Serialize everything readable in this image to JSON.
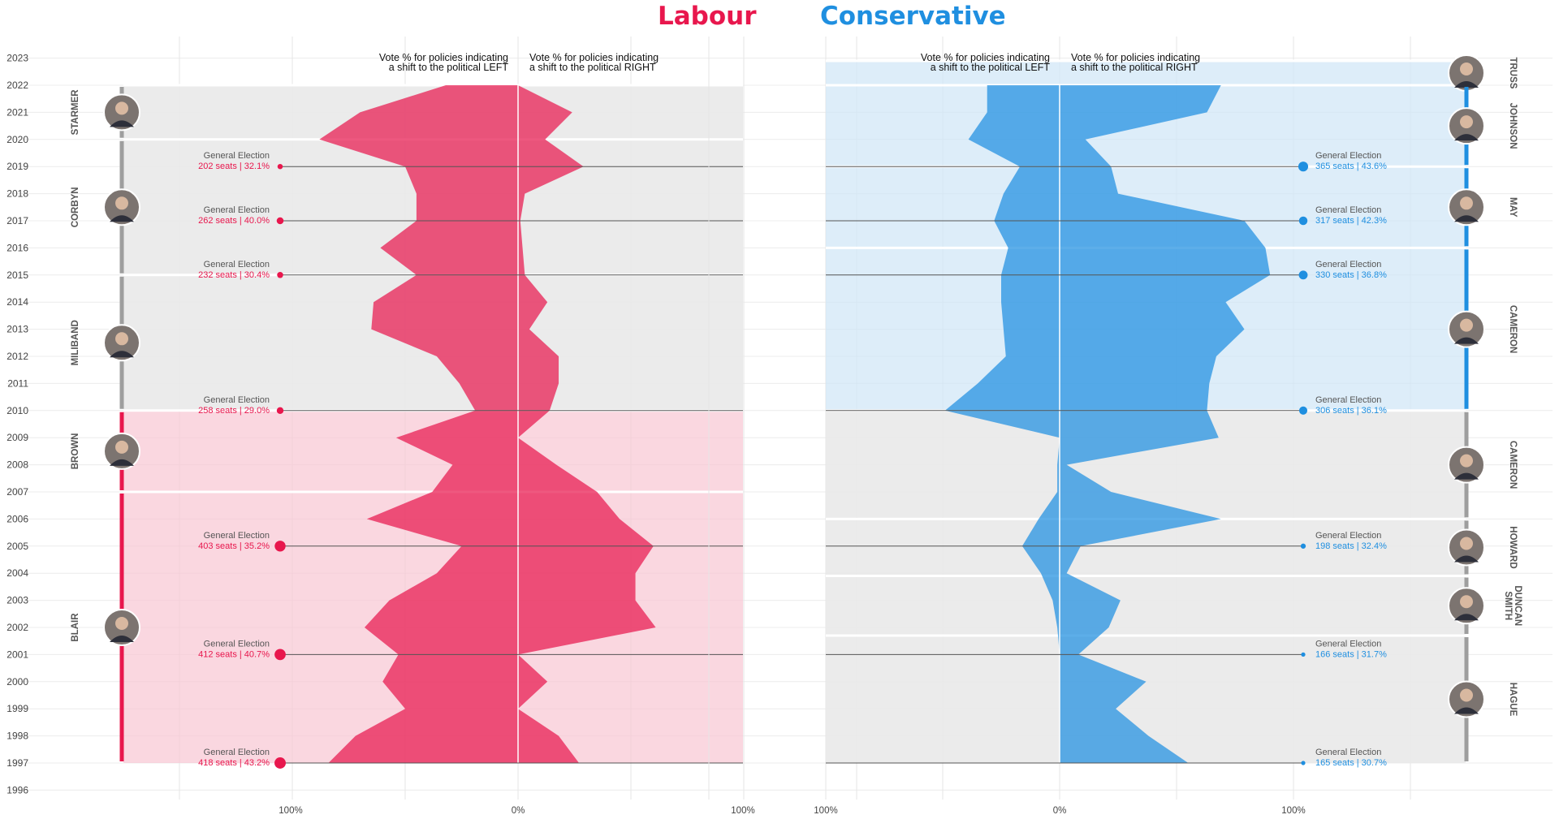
{
  "titles": {
    "labour": "Labour",
    "conservative": "Conservative"
  },
  "colors": {
    "labour": "#e8174d",
    "labour_light": "#f8c6d3",
    "conservative": "#1f8fe0",
    "conservative_light": "#cfe6f7",
    "neutral_band": "#e9e9e9",
    "neutral_line": "#9e9e9e"
  },
  "axis": {
    "years": [
      1996,
      1997,
      1998,
      1999,
      2000,
      2001,
      2002,
      2003,
      2004,
      2005,
      2006,
      2007,
      2008,
      2009,
      2010,
      2011,
      2012,
      2013,
      2014,
      2015,
      2016,
      2017,
      2018,
      2019,
      2020,
      2021,
      2022,
      2023
    ],
    "x_tick_labels": [
      "100%",
      "0%",
      "100%"
    ],
    "left_header": "Vote % for policies indicating\na shift to the political LEFT",
    "right_header": "Vote % for policies indicating\na shift to the political RIGHT"
  },
  "chart_data": [
    {
      "type": "area",
      "title": "Labour",
      "xlabel": "Vote % for policies",
      "xlim": [
        -100,
        100
      ],
      "ylim": [
        1996,
        2023
      ],
      "series": [
        {
          "name": "a shift to the political LEFT",
          "x": [
            1997,
            1998,
            1999,
            2000,
            2001,
            2002,
            2003,
            2004,
            2005,
            2006,
            2007,
            2008,
            2009,
            2010,
            2011,
            2012,
            2013,
            2014,
            2015,
            2016,
            2017,
            2018,
            2019,
            2020,
            2021,
            2022
          ],
          "values": [
            84,
            72,
            50,
            60,
            53,
            68,
            57,
            36,
            25,
            67,
            38,
            29,
            54,
            19,
            26,
            36,
            65,
            64,
            45,
            61,
            45,
            45,
            50,
            88,
            70,
            32
          ]
        },
        {
          "name": "a shift to the political RIGHT",
          "x": [
            1997,
            1998,
            1999,
            2000,
            2001,
            2002,
            2003,
            2004,
            2005,
            2006,
            2007,
            2008,
            2009,
            2010,
            2011,
            2012,
            2013,
            2014,
            2015,
            2016,
            2017,
            2018,
            2019,
            2020,
            2021,
            2022
          ],
          "values": [
            27,
            18,
            0,
            13,
            0,
            61,
            52,
            52,
            60,
            45,
            35,
            17,
            0,
            14,
            18,
            18,
            5,
            13,
            3,
            2,
            1,
            3,
            29,
            12,
            24,
            0
          ]
        }
      ],
      "eras": [
        {
          "leader": "STARMER",
          "start": 2020,
          "end": 2022,
          "opposition": true
        },
        {
          "leader": "CORBYN",
          "start": 2015,
          "end": 2020,
          "opposition": true
        },
        {
          "leader": "MILIBAND",
          "start": 2010,
          "end": 2015,
          "opposition": true
        },
        {
          "leader": "BROWN",
          "start": 2007,
          "end": 2010,
          "opposition": false
        },
        {
          "leader": "BLAIR",
          "start": 1997,
          "end": 2007,
          "opposition": false
        }
      ],
      "elections": [
        {
          "year": 2019,
          "label": "General Election",
          "result": "202 seats | 32.1%",
          "seats": 202
        },
        {
          "year": 2017,
          "label": "General Election",
          "result": "262 seats | 40.0%",
          "seats": 262
        },
        {
          "year": 2015,
          "label": "General Election",
          "result": "232 seats | 30.4%",
          "seats": 232
        },
        {
          "year": 2010,
          "label": "General Election",
          "result": "258 seats | 29.0%",
          "seats": 258
        },
        {
          "year": 2005,
          "label": "General Election",
          "result": "403 seats | 35.2%",
          "seats": 403
        },
        {
          "year": 2001,
          "label": "General Election",
          "result": "412 seats | 40.7%",
          "seats": 412
        },
        {
          "year": 1997,
          "label": "General Election",
          "result": "418 seats | 43.2%",
          "seats": 418
        }
      ]
    },
    {
      "type": "area",
      "title": "Conservative",
      "xlabel": "Vote % for policies",
      "xlim": [
        -100,
        100
      ],
      "ylim": [
        1996,
        2023
      ],
      "series": [
        {
          "name": "a shift to the political LEFT",
          "x": [
            1997,
            1998,
            1999,
            2000,
            2001,
            2002,
            2003,
            2004,
            2005,
            2006,
            2007,
            2008,
            2009,
            2010,
            2011,
            2012,
            2013,
            2014,
            2015,
            2016,
            2017,
            2018,
            2019,
            2020,
            2021,
            2022
          ],
          "values": [
            0,
            0,
            0,
            0,
            0,
            1,
            3,
            8,
            16,
            9,
            1,
            1,
            0,
            49,
            35,
            23,
            24,
            25,
            25,
            22,
            28,
            24,
            17,
            39,
            31,
            31
          ]
        },
        {
          "name": "a shift to the political RIGHT",
          "x": [
            1997,
            1998,
            1999,
            2000,
            2001,
            2002,
            2003,
            2004,
            2005,
            2006,
            2007,
            2008,
            2009,
            2010,
            2011,
            2012,
            2013,
            2014,
            2015,
            2016,
            2017,
            2018,
            2019,
            2020,
            2021,
            2022
          ],
          "values": [
            55,
            38,
            24,
            37,
            8,
            21,
            26,
            3,
            9,
            69,
            22,
            3,
            68,
            63,
            64,
            67,
            79,
            71,
            90,
            88,
            79,
            25,
            22,
            11,
            63,
            69
          ]
        }
      ],
      "eras": [
        {
          "leader": "TRUSS",
          "start": 2022,
          "end": 2022.9,
          "government": true
        },
        {
          "leader": "JOHNSON",
          "start": 2019,
          "end": 2022,
          "government": true
        },
        {
          "leader": "MAY",
          "start": 2016,
          "end": 2019,
          "government": true
        },
        {
          "leader": "CAMERON",
          "start": 2010,
          "end": 2016,
          "government": true
        },
        {
          "leader": "CAMERON",
          "start": 2006,
          "end": 2010,
          "government": false
        },
        {
          "leader": "HOWARD",
          "start": 2003.9,
          "end": 2006,
          "government": false
        },
        {
          "leader": "DUNCAN SMITH",
          "start": 2001.7,
          "end": 2003.9,
          "government": false
        },
        {
          "leader": "HAGUE",
          "start": 1997,
          "end": 2001.7,
          "government": false
        }
      ],
      "elections": [
        {
          "year": 2019,
          "label": "General Election",
          "result": "365 seats | 43.6%",
          "seats": 365
        },
        {
          "year": 2017,
          "label": "General Election",
          "result": "317 seats | 42.3%",
          "seats": 317
        },
        {
          "year": 2015,
          "label": "General Election",
          "result": "330 seats | 36.8%",
          "seats": 330
        },
        {
          "year": 2010,
          "label": "General Election",
          "result": "306 seats | 36.1%",
          "seats": 306
        },
        {
          "year": 2005,
          "label": "General Election",
          "result": "198 seats | 32.4%",
          "seats": 198
        },
        {
          "year": 2001,
          "label": "General Election",
          "result": "166 seats | 31.7%",
          "seats": 166
        },
        {
          "year": 1997,
          "label": "General Election",
          "result": "165 seats | 30.7%",
          "seats": 165
        }
      ]
    }
  ]
}
